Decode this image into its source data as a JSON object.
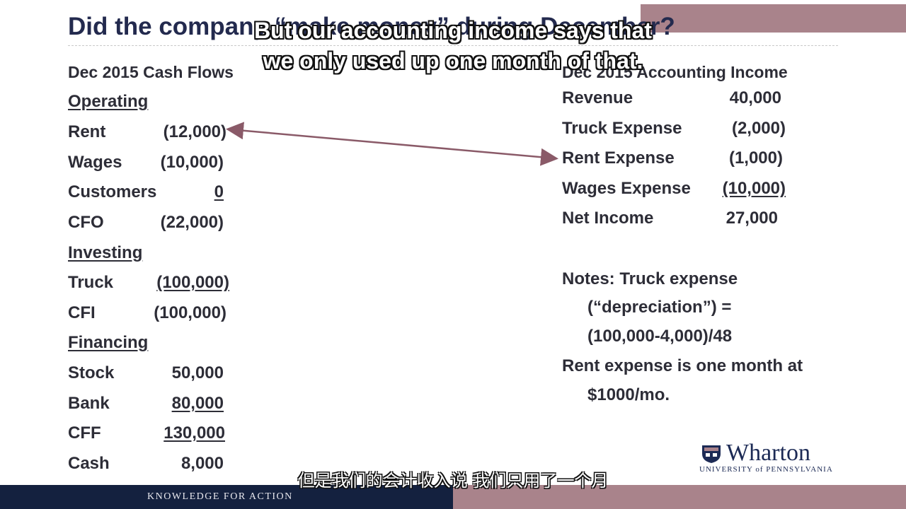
{
  "slide": {
    "title": "Did the company “make money” during December?"
  },
  "subtitles": {
    "en_line1": "But our accounting income says that",
    "en_line2": "we only used up one month of that.",
    "zh": "但是我们的会计收入说 我们只用了一个月"
  },
  "cash_flows": {
    "header": "Dec 2015 Cash Flows",
    "operating": {
      "label": "Operating",
      "rows": [
        {
          "label": "Rent",
          "value": "(12,000)"
        },
        {
          "label": "Wages",
          "value": "(10,000)"
        },
        {
          "label": "Customers",
          "value": "0"
        },
        {
          "label": "CFO",
          "value": "(22,000)"
        }
      ]
    },
    "investing": {
      "label": "Investing",
      "rows": [
        {
          "label": "Truck",
          "value": "(100,000)"
        },
        {
          "label": "CFI",
          "value": "(100,000)"
        }
      ]
    },
    "financing": {
      "label": "Financing",
      "rows": [
        {
          "label": "Stock",
          "value": "50,000"
        },
        {
          "label": "Bank",
          "value": "80,000"
        },
        {
          "label": "CFF",
          "value": "130,000"
        },
        {
          "label": "Cash",
          "value": "8,000"
        }
      ]
    }
  },
  "income": {
    "header": "Dec 2015 Accounting Income",
    "rows": [
      {
        "label": "Revenue",
        "value": "40,000"
      },
      {
        "label": "Truck Expense",
        "value": "(2,000)"
      },
      {
        "label": "Rent Expense",
        "value": "(1,000)"
      },
      {
        "label": "Wages Expense",
        "value": "(10,000)"
      },
      {
        "label": "Net Income",
        "value": "27,000"
      }
    ]
  },
  "notes": {
    "line1": "Notes: Truck expense",
    "line2": "(“depreciation”) =",
    "line3": "(100,000-4,000)/48",
    "line4": "Rent expense is one month at",
    "line5": "$1000/mo."
  },
  "brand": {
    "logo_text": "Wharton",
    "logo_subtext": "UNIVERSITY of PENNSYLVANIA",
    "tagline": "KNOWLEDGE FOR ACTION"
  },
  "colors": {
    "navy": "#14213f",
    "mauve": "#a9838b",
    "arrow": "#8a5a68"
  }
}
